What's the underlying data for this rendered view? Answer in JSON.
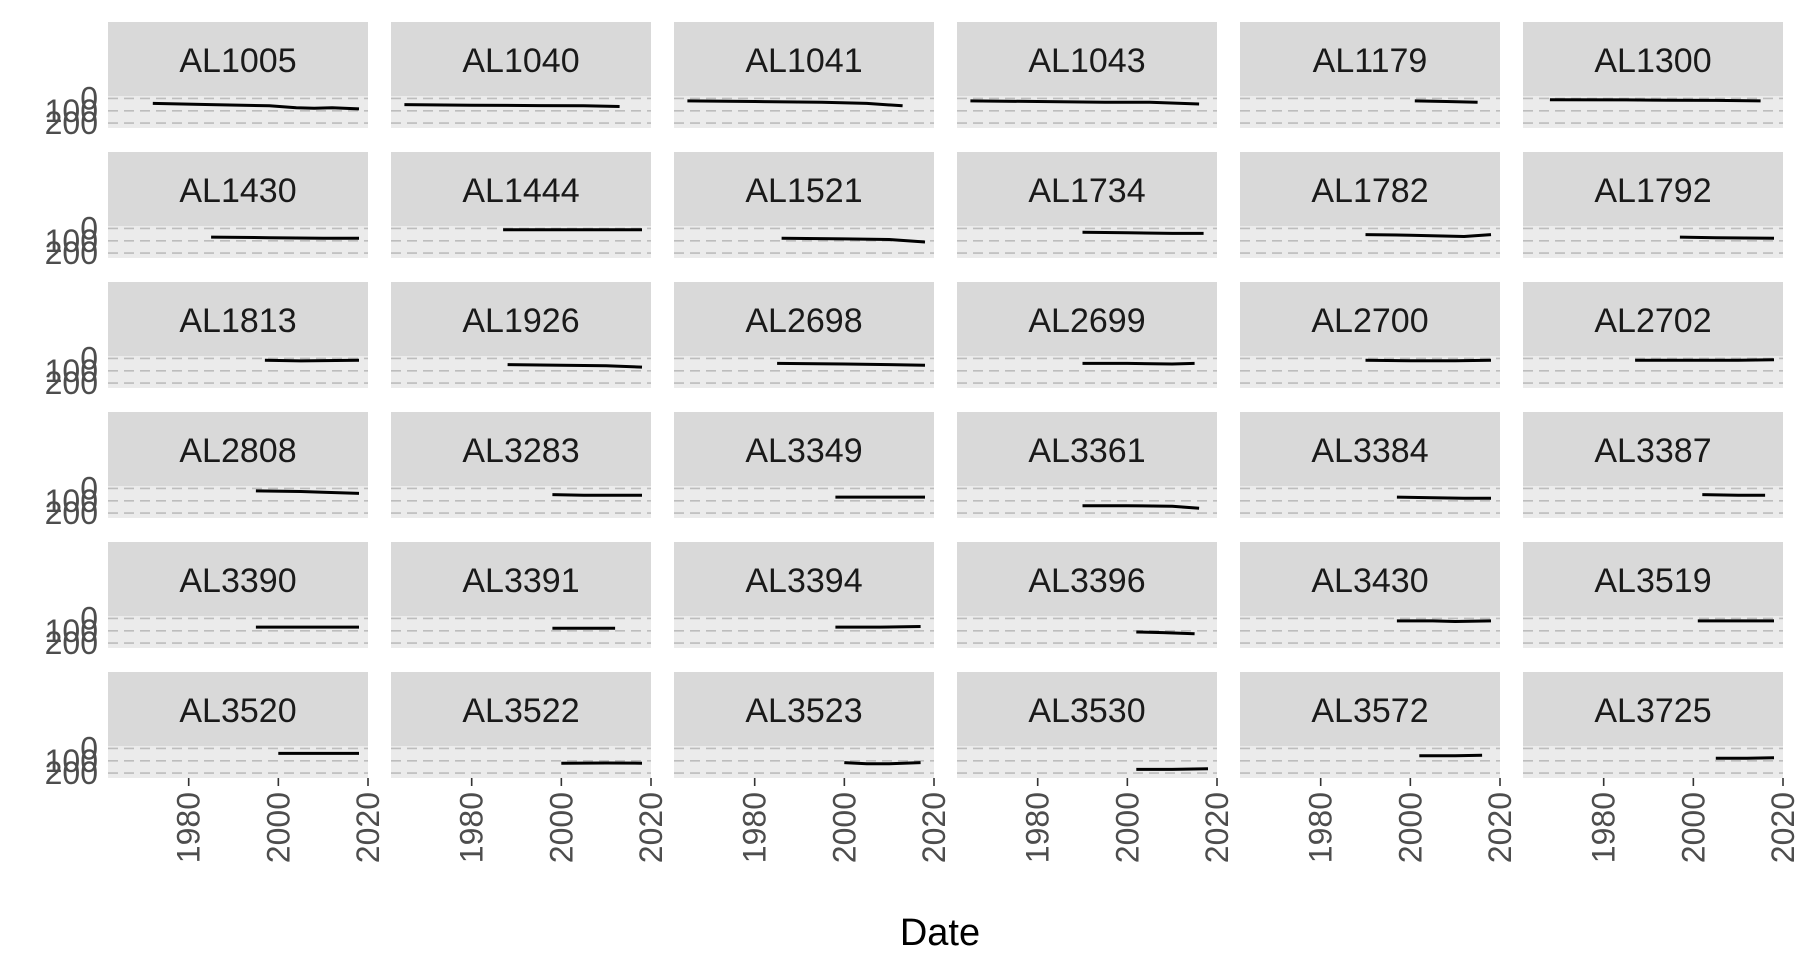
{
  "chart_data": {
    "type": "line",
    "facet": "wrap",
    "xlabel": "Date",
    "ylabel": "",
    "x_ticks": [
      1980,
      2000,
      2020
    ],
    "xlim": [
      1962,
      2020
    ],
    "y_ticks": [
      0,
      100,
      200
    ],
    "ylim": [
      240,
      -20
    ],
    "y_reversed": true,
    "grid": "y-dashed",
    "colors": {
      "strip": "#d9d9d9",
      "panel": "#ebebeb",
      "grid": "#bdbdbd",
      "line": "#000000",
      "tick": "#4d4d4d"
    },
    "panels": [
      {
        "name": "AL1005",
        "x": [
          1972,
          1985,
          1998,
          2004,
          2008,
          2012,
          2018
        ],
        "y": [
          40,
          50,
          60,
          75,
          80,
          75,
          85
        ]
      },
      {
        "name": "AL1040",
        "x": [
          1965,
          1980,
          1995,
          2005,
          2013
        ],
        "y": [
          50,
          55,
          58,
          60,
          65
        ]
      },
      {
        "name": "AL1041",
        "x": [
          1965,
          1980,
          1995,
          2005,
          2013
        ],
        "y": [
          20,
          25,
          30,
          40,
          60
        ]
      },
      {
        "name": "AL1043",
        "x": [
          1965,
          1980,
          1995,
          2005,
          2016
        ],
        "y": [
          20,
          25,
          30,
          30,
          45
        ]
      },
      {
        "name": "AL1179",
        "x": [
          2001,
          2008,
          2015
        ],
        "y": [
          20,
          25,
          30
        ]
      },
      {
        "name": "AL1300",
        "x": [
          1968,
          1985,
          1995,
          2005,
          2015
        ],
        "y": [
          10,
          12,
          14,
          16,
          20
        ]
      },
      {
        "name": "AL1430",
        "x": [
          1985,
          1998,
          2010,
          2018
        ],
        "y": [
          70,
          75,
          80,
          80
        ]
      },
      {
        "name": "AL1444",
        "x": [
          1987,
          2000,
          2018
        ],
        "y": [
          10,
          10,
          10
        ]
      },
      {
        "name": "AL1521",
        "x": [
          1986,
          2000,
          2010,
          2018
        ],
        "y": [
          80,
          85,
          90,
          110
        ]
      },
      {
        "name": "AL1734",
        "x": [
          1990,
          2000,
          2010,
          2017
        ],
        "y": [
          30,
          35,
          40,
          40
        ]
      },
      {
        "name": "AL1782",
        "x": [
          1990,
          2000,
          2012,
          2018
        ],
        "y": [
          50,
          55,
          65,
          50
        ]
      },
      {
        "name": "AL1792",
        "x": [
          1997,
          2005,
          2018
        ],
        "y": [
          70,
          75,
          80
        ]
      },
      {
        "name": "AL1813",
        "x": [
          1997,
          2005,
          2018
        ],
        "y": [
          15,
          20,
          15
        ]
      },
      {
        "name": "AL1926",
        "x": [
          1988,
          2000,
          2010,
          2018
        ],
        "y": [
          50,
          55,
          60,
          70
        ]
      },
      {
        "name": "AL2698",
        "x": [
          1985,
          2000,
          2010,
          2018
        ],
        "y": [
          40,
          45,
          50,
          55
        ]
      },
      {
        "name": "AL2699",
        "x": [
          1990,
          2000,
          2010,
          2015
        ],
        "y": [
          40,
          40,
          45,
          40
        ]
      },
      {
        "name": "AL2700",
        "x": [
          1990,
          2000,
          2010,
          2018
        ],
        "y": [
          15,
          18,
          18,
          15
        ]
      },
      {
        "name": "AL2702",
        "x": [
          1987,
          2000,
          2010,
          2018
        ],
        "y": [
          15,
          15,
          15,
          10
        ]
      },
      {
        "name": "AL2808",
        "x": [
          1995,
          2005,
          2010,
          2018
        ],
        "y": [
          20,
          25,
          30,
          40
        ]
      },
      {
        "name": "AL3283",
        "x": [
          1998,
          2005,
          2018
        ],
        "y": [
          50,
          55,
          55
        ]
      },
      {
        "name": "AL3349",
        "x": [
          1998,
          2008,
          2018
        ],
        "y": [
          70,
          70,
          70
        ]
      },
      {
        "name": "AL3361",
        "x": [
          1990,
          2000,
          2010,
          2016
        ],
        "y": [
          140,
          140,
          145,
          160
        ]
      },
      {
        "name": "AL3384",
        "x": [
          1997,
          2005,
          2012,
          2018
        ],
        "y": [
          70,
          75,
          80,
          80
        ]
      },
      {
        "name": "AL3387",
        "x": [
          2002,
          2010,
          2016
        ],
        "y": [
          50,
          55,
          55
        ]
      },
      {
        "name": "AL3390",
        "x": [
          1995,
          2005,
          2018
        ],
        "y": [
          70,
          70,
          70
        ]
      },
      {
        "name": "AL3391",
        "x": [
          1998,
          2005,
          2012
        ],
        "y": [
          80,
          80,
          80
        ]
      },
      {
        "name": "AL3394",
        "x": [
          1998,
          2008,
          2017
        ],
        "y": [
          70,
          70,
          65
        ]
      },
      {
        "name": "AL3396",
        "x": [
          2002,
          2008,
          2015
        ],
        "y": [
          110,
          115,
          125
        ]
      },
      {
        "name": "AL3430",
        "x": [
          1997,
          2005,
          2010,
          2018
        ],
        "y": [
          20,
          20,
          25,
          20
        ]
      },
      {
        "name": "AL3519",
        "x": [
          2001,
          2010,
          2018
        ],
        "y": [
          20,
          20,
          20
        ]
      },
      {
        "name": "AL3520",
        "x": [
          2000,
          2008,
          2018
        ],
        "y": [
          40,
          40,
          40
        ]
      },
      {
        "name": "AL3522",
        "x": [
          2000,
          2010,
          2018
        ],
        "y": [
          120,
          118,
          120
        ]
      },
      {
        "name": "AL3523",
        "x": [
          2000,
          2005,
          2010,
          2017
        ],
        "y": [
          115,
          125,
          125,
          115
        ]
      },
      {
        "name": "AL3530",
        "x": [
          2002,
          2010,
          2018
        ],
        "y": [
          170,
          170,
          165
        ]
      },
      {
        "name": "AL3572",
        "x": [
          2002,
          2010,
          2016
        ],
        "y": [
          60,
          60,
          55
        ]
      },
      {
        "name": "AL3725",
        "x": [
          2005,
          2012,
          2018
        ],
        "y": [
          80,
          80,
          75
        ]
      }
    ]
  }
}
